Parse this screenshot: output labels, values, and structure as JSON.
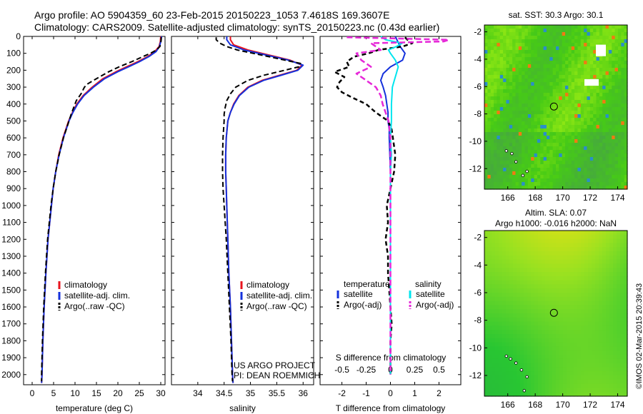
{
  "header": {
    "line1": "Argo profile: AO 5904359_60 23-Feb-2015 20150223_1053 7.4618S 169.3607E",
    "line2": "Climatology: CARS2009. Satellite-adjusted climatology: synTS_20150223.nc (0.43d earlier)"
  },
  "credit": "©IMOS 02-Mar-2015 20:39:43",
  "map_sst": {
    "title": "sat. SST: 30.3 Argo: 30.1",
    "xticks": [
      "166",
      "168",
      "170",
      "172",
      "174"
    ],
    "yticks": [
      "-2",
      "-4",
      "-6",
      "-8",
      "-10",
      "-12"
    ],
    "xlim": [
      164.3,
      174.7
    ],
    "ylim": [
      -13.5,
      -1.5
    ],
    "float_marker": [
      169.36,
      -7.46
    ],
    "islands": [
      [
        165.9,
        -10.7
      ],
      [
        166.3,
        -10.9
      ],
      [
        166.6,
        -11.5
      ],
      [
        167.4,
        -12.2
      ],
      [
        167.1,
        -12.5
      ]
    ]
  },
  "map_sla": {
    "title1": "Altim. SLA: 0.07",
    "title2": "Argo h1000: -0.016 h2000: NaN",
    "xticks": [
      "166",
      "168",
      "170",
      "172",
      "174"
    ],
    "yticks": [
      "-2",
      "-4",
      "-6",
      "-8",
      "-10",
      "-12"
    ],
    "xlim": [
      164.3,
      174.7
    ],
    "ylim": [
      -13.5,
      -1.5
    ],
    "float_marker": [
      169.36,
      -7.46
    ],
    "islands": [
      [
        165.9,
        -10.6
      ],
      [
        166.2,
        -10.8
      ],
      [
        166.6,
        -11.1
      ],
      [
        167.0,
        -11.6
      ],
      [
        167.4,
        -12.1
      ],
      [
        167.2,
        -13.1
      ]
    ]
  },
  "chart_data": [
    {
      "type": "line",
      "xlabel": "temperature (deg C)",
      "ylabel": "",
      "xlim": [
        -2,
        31
      ],
      "ylim": [
        2060,
        0
      ],
      "xticks": [
        0,
        5,
        10,
        15,
        20,
        25,
        30
      ],
      "yticks": [
        0,
        100,
        200,
        300,
        400,
        500,
        600,
        700,
        800,
        900,
        1000,
        1100,
        1200,
        1300,
        1400,
        1500,
        1600,
        1700,
        1800,
        1900,
        2000
      ],
      "legend": [
        "climatology",
        "satellite-adj. clim.",
        "Argo(..raw -QC)"
      ],
      "legend_placement": "lower-center",
      "colors": {
        "climatology": "#e8141e",
        "satellite": "#1431dc",
        "argo": "#000000"
      },
      "series": [
        {
          "name": "climatology",
          "depth": [
            0,
            30,
            60,
            90,
            120,
            150,
            180,
            210,
            250,
            300,
            350,
            400,
            450,
            500,
            600,
            700,
            800,
            900,
            1000,
            1200,
            1400,
            1600,
            1800,
            2000,
            2050
          ],
          "values": [
            30.0,
            29.9,
            29.6,
            28.6,
            26.9,
            24.6,
            22.0,
            19.5,
            16.5,
            14.0,
            11.9,
            10.4,
            9.4,
            8.5,
            7.2,
            6.2,
            5.5,
            4.9,
            4.5,
            3.7,
            3.2,
            2.8,
            2.5,
            2.3,
            2.2
          ]
        },
        {
          "name": "satellite-adj. clim.",
          "depth": [
            0,
            30,
            60,
            90,
            120,
            150,
            180,
            210,
            250,
            300,
            350,
            400,
            450,
            500,
            600,
            700,
            800,
            900,
            1000,
            1200,
            1400,
            1600,
            1800,
            2000,
            2050
          ],
          "values": [
            30.2,
            30.0,
            29.7,
            28.9,
            27.2,
            25.0,
            22.5,
            19.9,
            16.9,
            14.3,
            12.1,
            10.6,
            9.5,
            8.6,
            7.3,
            6.3,
            5.5,
            4.9,
            4.5,
            3.7,
            3.2,
            2.8,
            2.5,
            2.3,
            2.2
          ]
        },
        {
          "name": "Argo(..raw -QC)",
          "depth": [
            5,
            20,
            40,
            60,
            80,
            100,
            120,
            150,
            180,
            210,
            250,
            280,
            300,
            340,
            380,
            420,
            460,
            500,
            600,
            700,
            800,
            900,
            1000,
            1200,
            1400,
            1600,
            1800,
            2000,
            2040
          ],
          "values": [
            30.1,
            30.1,
            30.0,
            29.8,
            29.0,
            27.6,
            25.8,
            23.2,
            20.3,
            17.8,
            15.0,
            13.0,
            12.2,
            11.4,
            10.3,
            9.7,
            9.1,
            8.6,
            7.3,
            6.3,
            5.5,
            4.9,
            4.4,
            3.6,
            3.1,
            2.7,
            2.4,
            2.2,
            2.2
          ]
        }
      ]
    },
    {
      "type": "line",
      "xlabel": "salinity",
      "xlim": [
        33.5,
        36.2
      ],
      "ylim": [
        2060,
        0
      ],
      "xticks": [
        34,
        34.5,
        35,
        35.5,
        36
      ],
      "xtick_labels": [
        "34",
        "34.5",
        "35",
        "35.5",
        "36"
      ],
      "legend": [
        "climatology",
        "satellite-adj. clim.",
        "Argo(..raw -QC)"
      ],
      "legend_placement": "lower-center",
      "annotation": [
        "US ARGO PROJECT",
        "PI: DEAN ROEMMICH"
      ],
      "series": [
        {
          "name": "climatology",
          "depth": [
            0,
            20,
            50,
            80,
            110,
            140,
            170,
            200,
            230,
            260,
            300,
            350,
            400,
            450,
            500,
            600,
            700,
            800,
            900,
            1000,
            1200,
            1400,
            1600,
            1800,
            2000,
            2050
          ],
          "values": [
            34.62,
            34.62,
            34.68,
            34.95,
            35.35,
            35.75,
            35.98,
            35.88,
            35.55,
            35.22,
            34.95,
            34.78,
            34.68,
            34.62,
            34.57,
            34.54,
            34.53,
            34.53,
            34.54,
            34.55,
            34.57,
            34.59,
            34.62,
            34.64,
            34.66,
            34.67
          ]
        },
        {
          "name": "satellite-adj. clim.",
          "depth": [
            0,
            20,
            50,
            80,
            110,
            140,
            170,
            200,
            230,
            260,
            300,
            350,
            400,
            450,
            500,
            600,
            700,
            800,
            900,
            1000,
            1200,
            1400,
            1600,
            1800,
            2000,
            2050
          ],
          "values": [
            34.55,
            34.55,
            34.62,
            34.88,
            35.3,
            35.72,
            36.0,
            35.9,
            35.58,
            35.25,
            34.97,
            34.79,
            34.69,
            34.62,
            34.57,
            34.54,
            34.53,
            34.53,
            34.54,
            34.55,
            34.57,
            34.59,
            34.62,
            34.64,
            34.66,
            34.67
          ]
        },
        {
          "name": "Argo(..raw -QC)",
          "depth": [
            5,
            20,
            40,
            60,
            80,
            100,
            120,
            140,
            160,
            180,
            200,
            230,
            260,
            300,
            340,
            380,
            420,
            460,
            500,
            600,
            700,
            800,
            900,
            1000,
            1200,
            1400,
            1600,
            1800,
            2000,
            2040
          ],
          "values": [
            34.35,
            34.35,
            34.42,
            34.55,
            34.75,
            35.05,
            35.35,
            35.65,
            35.95,
            35.92,
            35.65,
            35.25,
            34.95,
            34.72,
            34.62,
            34.55,
            34.52,
            34.5,
            34.5,
            34.48,
            34.47,
            34.47,
            34.48,
            34.5,
            34.54,
            34.57,
            34.6,
            34.63,
            34.65,
            34.66
          ]
        }
      ]
    },
    {
      "type": "line",
      "xlabel": "T difference from climatology",
      "x2label": "S difference from climatology",
      "xlim": [
        -2.9,
        2.9
      ],
      "ylim": [
        2060,
        0
      ],
      "xticks": [
        -2,
        -1,
        0,
        1,
        2
      ],
      "x2ticks": [
        -0.5,
        -0.25,
        0,
        0.25,
        0.5
      ],
      "x2tick_labels": [
        "-0.5",
        "-0.25",
        "0",
        "0.25",
        "0.5"
      ],
      "legend_groups": [
        {
          "title": "temperature",
          "items": [
            "satellite",
            "Argo(-adj)"
          ]
        },
        {
          "title": "salinity",
          "items": [
            "satellite",
            "Argo(-adj)"
          ]
        }
      ],
      "legend_placement": "lower-center",
      "colors": {
        "t_satellite": "#1431dc",
        "t_argo": "#000000",
        "s_satellite": "#00e5ee",
        "s_argo": "#e628d8"
      },
      "series": [
        {
          "name": "temperature satellite",
          "depth": [
            0,
            30,
            60,
            100,
            140,
            180,
            220,
            260,
            300,
            350,
            400,
            450,
            500,
            550,
            600,
            800,
            1000,
            1500,
            2000
          ],
          "values": [
            0.2,
            0.3,
            0.4,
            0.6,
            0.5,
            0.0,
            -0.3,
            -0.4,
            -0.3,
            -0.2,
            -0.15,
            -0.1,
            -0.1,
            -0.05,
            -0.05,
            0.0,
            0.0,
            0.0,
            0.0
          ]
        },
        {
          "name": "temperature Argo(-adj)",
          "depth": [
            5,
            20,
            40,
            60,
            80,
            100,
            120,
            150,
            180,
            210,
            240,
            270,
            300,
            330,
            360,
            400,
            450,
            480,
            500,
            550,
            600,
            700,
            800,
            900,
            1000,
            1100,
            1200,
            1300,
            1400,
            1500,
            1600,
            1700,
            1800,
            1900,
            2000
          ],
          "values": [
            0.6,
            0.7,
            0.9,
            0.5,
            -0.5,
            -0.9,
            -1.5,
            -1.8,
            -1.7,
            -2.3,
            -1.9,
            -2.1,
            -2.2,
            -2.0,
            -1.6,
            -1.0,
            -0.6,
            -0.3,
            -0.1,
            0.05,
            0.1,
            0.2,
            0.15,
            0.0,
            -0.15,
            -0.1,
            -0.2,
            -0.1,
            -0.1,
            -0.05,
            0.0,
            0.05,
            0.0,
            0.0,
            0.0
          ]
        },
        {
          "name": "salinity satellite",
          "depth": [
            0,
            20,
            40,
            60,
            80,
            100,
            140,
            180,
            220,
            260,
            300,
            400,
            500,
            600,
            700,
            800,
            1000,
            1500,
            2000
          ],
          "values": [
            -0.1,
            -0.05,
            0.12,
            0.06,
            -0.02,
            0.0,
            0.05,
            0.08,
            0.06,
            0.04,
            0.02,
            0.01,
            0.01,
            0.0,
            0.01,
            0.0,
            0.0,
            0.0,
            0.0
          ]
        },
        {
          "name": "salinity Argo(-adj)",
          "depth": [
            5,
            20,
            30,
            40,
            60,
            80,
            100,
            140,
            180,
            220,
            260,
            300,
            350,
            400,
            450,
            500,
            600,
            800,
            1000,
            1500,
            2000
          ],
          "values": [
            -0.45,
            0.6,
            0.55,
            -0.2,
            -0.15,
            -0.1,
            -0.35,
            -0.3,
            -0.2,
            -0.35,
            -0.25,
            -0.15,
            -0.1,
            -0.08,
            -0.05,
            -0.02,
            0.0,
            0.0,
            0.0,
            0.0,
            0.0
          ]
        }
      ]
    }
  ]
}
